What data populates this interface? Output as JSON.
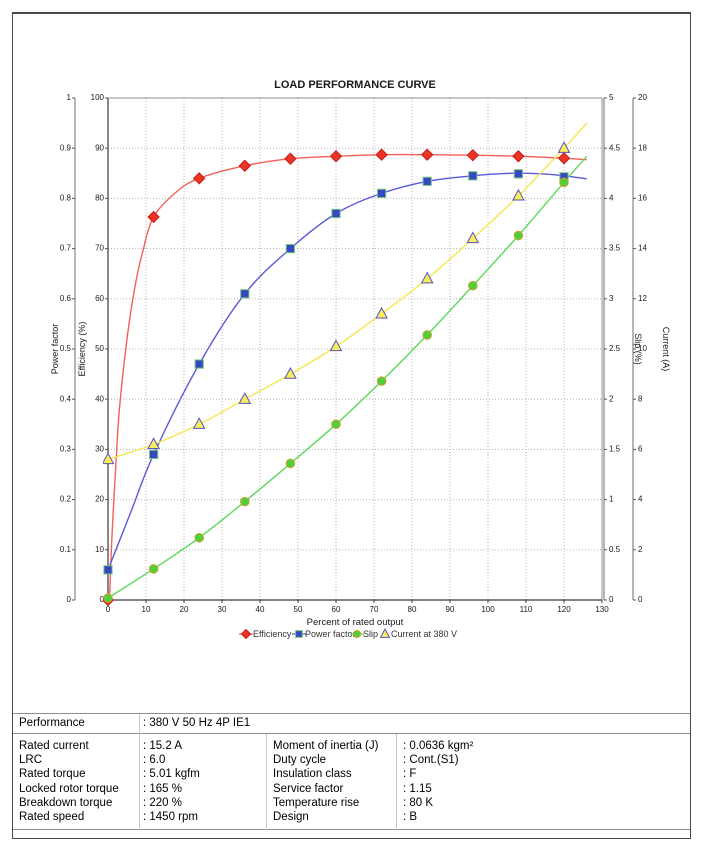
{
  "chart_data": {
    "type": "line",
    "title": "LOAD PERFORMANCE CURVE",
    "xlabel": "Percent of rated output",
    "x_range": [
      0,
      130
    ],
    "x_tick_step": 10,
    "grid": true,
    "legend_position": "bottom",
    "axes": [
      {
        "id": "eff",
        "label": "Efficiency (%)",
        "min": 0,
        "max": 100,
        "step": 10,
        "side": "left",
        "slot": 0
      },
      {
        "id": "pf",
        "label": "Power factor",
        "min": 0,
        "max": 1,
        "step": 0.1,
        "side": "left",
        "slot": 1
      },
      {
        "id": "slip",
        "label": "Slip (%)",
        "min": 0,
        "max": 5,
        "step": 0.5,
        "side": "right",
        "slot": 0
      },
      {
        "id": "cur",
        "label": "Current (A)",
        "min": 0,
        "max": 20,
        "step": 2,
        "side": "right",
        "slot": 1
      }
    ],
    "series": [
      {
        "name": "Efficiency",
        "axis": "eff",
        "marker": "diamond",
        "line_color": "#f26157",
        "marker_fill": "#ee3426",
        "marker_edge": "#c21d12",
        "x": [
          0,
          12,
          24,
          36,
          48,
          60,
          72,
          84,
          96,
          108,
          120
        ],
        "y": [
          0,
          76.3,
          84.0,
          86.5,
          87.9,
          88.4,
          88.7,
          88.7,
          88.6,
          88.4,
          88.0
        ],
        "curve": [
          [
            0.4,
            0
          ],
          [
            1,
            12
          ],
          [
            2,
            26
          ],
          [
            3,
            38
          ],
          [
            5,
            52
          ],
          [
            7,
            62
          ],
          [
            9,
            69
          ],
          [
            12,
            76.3
          ],
          [
            18,
            81.3
          ],
          [
            24,
            84.0
          ],
          [
            36,
            86.5
          ],
          [
            48,
            87.9
          ],
          [
            60,
            88.4
          ],
          [
            72,
            88.7
          ],
          [
            84,
            88.7
          ],
          [
            96,
            88.6
          ],
          [
            108,
            88.4
          ],
          [
            120,
            88.0
          ],
          [
            126,
            87.7
          ]
        ]
      },
      {
        "name": "Power factor",
        "axis": "pf",
        "marker": "square",
        "line_color": "#5a5ad8",
        "marker_fill": "#3747c3",
        "marker_edge": "#76c77a",
        "x": [
          0,
          12,
          24,
          36,
          48,
          60,
          72,
          84,
          96,
          108,
          120
        ],
        "y": [
          0.06,
          0.29,
          0.47,
          0.61,
          0.7,
          0.77,
          0.81,
          0.834,
          0.845,
          0.849,
          0.843
        ],
        "curve": [
          [
            0,
            0.06
          ],
          [
            6,
            0.175
          ],
          [
            12,
            0.29
          ],
          [
            24,
            0.47
          ],
          [
            36,
            0.61
          ],
          [
            48,
            0.7
          ],
          [
            60,
            0.77
          ],
          [
            72,
            0.81
          ],
          [
            84,
            0.834
          ],
          [
            96,
            0.845
          ],
          [
            106,
            0.85
          ],
          [
            114,
            0.849
          ],
          [
            120,
            0.845
          ],
          [
            126,
            0.839
          ]
        ]
      },
      {
        "name": "Slip",
        "axis": "slip",
        "marker": "circle",
        "line_color": "#5cd95c",
        "marker_fill": "#4ad23a",
        "marker_edge": "#d89c30",
        "x": [
          0,
          12,
          24,
          36,
          48,
          60,
          72,
          84,
          96,
          108,
          120
        ],
        "y": [
          0.02,
          0.31,
          0.62,
          0.98,
          1.36,
          1.75,
          2.18,
          2.64,
          3.13,
          3.63,
          4.16
        ],
        "curve": [
          [
            0,
            0.02
          ],
          [
            12,
            0.31
          ],
          [
            24,
            0.62
          ],
          [
            36,
            0.98
          ],
          [
            48,
            1.36
          ],
          [
            60,
            1.75
          ],
          [
            72,
            2.18
          ],
          [
            84,
            2.64
          ],
          [
            96,
            3.13
          ],
          [
            108,
            3.63
          ],
          [
            120,
            4.16
          ],
          [
            126,
            4.42
          ]
        ]
      },
      {
        "name": "Current at 380 V",
        "axis": "cur",
        "marker": "triangle",
        "line_color": "#f5e84e",
        "marker_fill": "#f7ee59",
        "marker_edge": "#5852c5",
        "x": [
          0,
          12,
          24,
          36,
          48,
          60,
          72,
          84,
          96,
          108,
          120
        ],
        "y": [
          5.6,
          6.2,
          7.0,
          8.0,
          9.0,
          10.1,
          11.4,
          12.8,
          14.4,
          16.1,
          18.0
        ],
        "curve": [
          [
            0,
            5.6
          ],
          [
            12,
            6.2
          ],
          [
            24,
            7.0
          ],
          [
            36,
            8.0
          ],
          [
            48,
            9.0
          ],
          [
            60,
            10.1
          ],
          [
            72,
            11.4
          ],
          [
            84,
            12.8
          ],
          [
            96,
            14.4
          ],
          [
            108,
            16.1
          ],
          [
            120,
            18.0
          ],
          [
            126,
            19.0
          ]
        ]
      }
    ],
    "legend": [
      "Efficiency",
      "Power factor",
      "Slip",
      "Current at 380 V"
    ]
  },
  "table": {
    "performance": {
      "label": "Performance",
      "value": ": 380 V 50 Hz 4P IE1"
    },
    "left_rows": [
      {
        "label": "Rated current",
        "value": ": 15.2 A"
      },
      {
        "label": "LRC",
        "value": ": 6.0"
      },
      {
        "label": "Rated torque",
        "value": ": 5.01 kgfm"
      },
      {
        "label": "Locked rotor torque",
        "value": ": 165 %"
      },
      {
        "label": "Breakdown torque",
        "value": ": 220 %"
      },
      {
        "label": "Rated speed",
        "value": ": 1450 rpm"
      }
    ],
    "right_rows": [
      {
        "label": "Moment of inertia (J)",
        "value": ": 0.0636 kgm²"
      },
      {
        "label": "Duty cycle",
        "value": ": Cont.(S1)"
      },
      {
        "label": "Insulation class",
        "value": ": F"
      },
      {
        "label": "Service factor",
        "value": ": 1.15"
      },
      {
        "label": "Temperature rise",
        "value": ": 80 K"
      },
      {
        "label": "Design",
        "value": ": B"
      }
    ]
  }
}
